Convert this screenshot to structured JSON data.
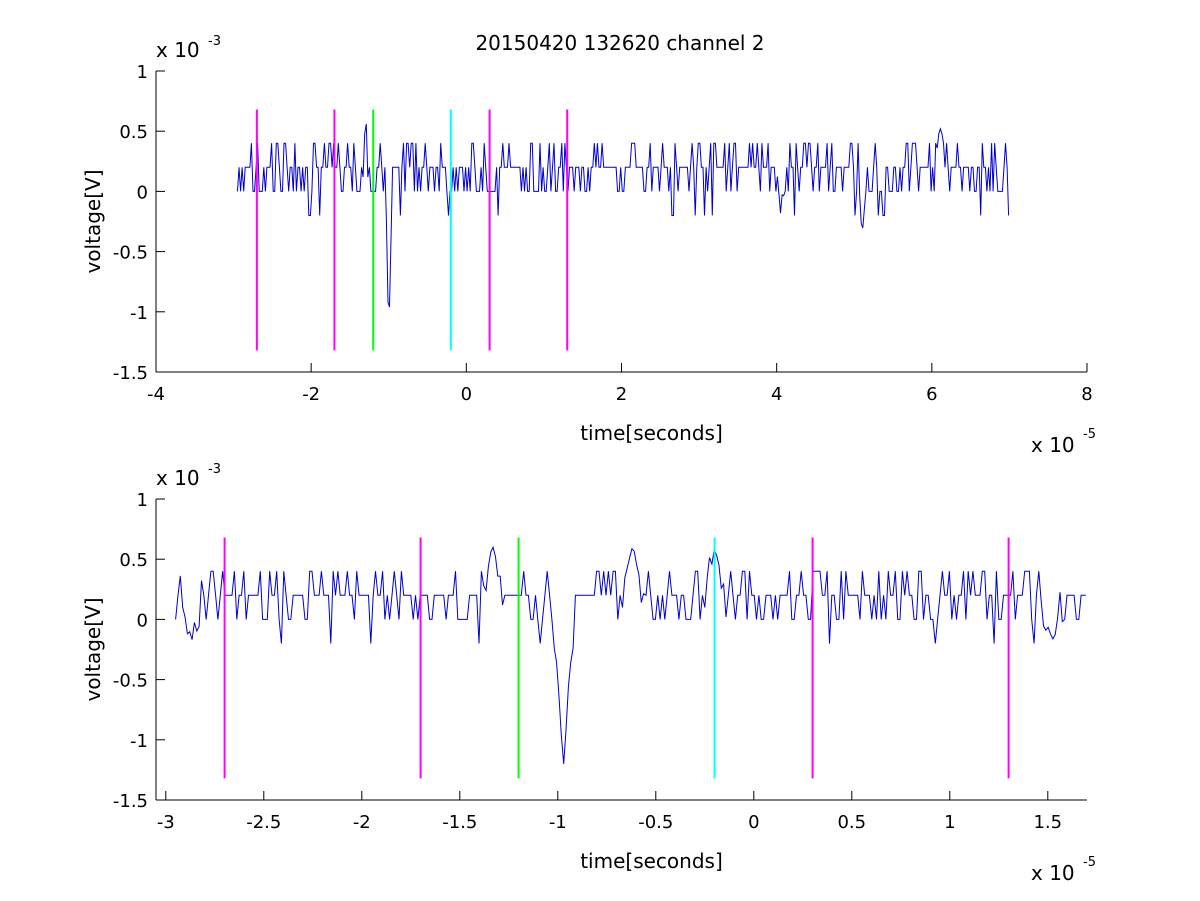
{
  "figure": {
    "title": "20150420 132620 channel 2"
  },
  "colors": {
    "signal": "#0000d0",
    "magenta": "#ff00ff",
    "green": "#00ff00",
    "cyan": "#00ffff",
    "axes": "#000000"
  },
  "chart_data": [
    {
      "type": "line",
      "name": "overview",
      "title": "20150420 132620 channel 2",
      "xlabel": "time[seconds]",
      "ylabel": "voltage[V]",
      "x_exponent_text": "x 10",
      "x_exponent_power": "-5",
      "y_exponent_text": "x 10",
      "y_exponent_power": "-3",
      "xlim": [
        -4,
        8
      ],
      "ylim": [
        -1.5,
        1
      ],
      "x_ticks": [
        "-4",
        "-2",
        "0",
        "2",
        "4",
        "6",
        "8"
      ],
      "y_ticks": [
        "-1.5",
        "-1",
        "-0.5",
        "0",
        "0.5",
        "1"
      ],
      "x_tick_values": [
        -4,
        -2,
        0,
        2,
        4,
        6,
        8
      ],
      "y_tick_values": [
        -1.5,
        -1,
        -0.5,
        0,
        0.5,
        1
      ],
      "grid": false,
      "signal": {
        "x_start": -2.95,
        "x_end": 7.0,
        "baseline": 0.2,
        "spikes": [
          {
            "x": -1.0,
            "y": -1.2
          },
          {
            "x": -1.3,
            "y": 0.6
          },
          {
            "x": 5.1,
            "y": -0.38
          },
          {
            "x": 6.1,
            "y": 0.6
          },
          {
            "x": 4.05,
            "y": -0.18
          }
        ]
      },
      "markers": [
        {
          "x": -2.7,
          "color": "magenta",
          "y_from": -1.32,
          "y_to": 0.68
        },
        {
          "x": -1.7,
          "color": "magenta",
          "y_from": -1.32,
          "y_to": 0.68
        },
        {
          "x": -1.2,
          "color": "green",
          "y_from": -1.32,
          "y_to": 0.68
        },
        {
          "x": -0.2,
          "color": "cyan",
          "y_from": -1.32,
          "y_to": 0.68
        },
        {
          "x": 0.3,
          "color": "magenta",
          "y_from": -1.32,
          "y_to": 0.68
        },
        {
          "x": 1.3,
          "color": "magenta",
          "y_from": -1.32,
          "y_to": 0.68
        }
      ]
    },
    {
      "type": "line",
      "name": "zoom",
      "title": "",
      "xlabel": "time[seconds]",
      "ylabel": "voltage[V]",
      "x_exponent_text": "x 10",
      "x_exponent_power": "-5",
      "y_exponent_text": "x 10",
      "y_exponent_power": "-3",
      "xlim": [
        -3.05,
        1.7
      ],
      "ylim": [
        -1.5,
        1
      ],
      "x_ticks": [
        "-3",
        "-2.5",
        "-2",
        "-1.5",
        "-1",
        "-0.5",
        "0",
        "0.5",
        "1",
        "1.5"
      ],
      "y_ticks": [
        "-1.5",
        "-1",
        "-0.5",
        "0",
        "0.5",
        "1"
      ],
      "x_tick_values": [
        -3,
        -2.5,
        -2,
        -1.5,
        -1,
        -0.5,
        0,
        0.5,
        1,
        1.5
      ],
      "y_tick_values": [
        -1.5,
        -1,
        -0.5,
        0,
        0.5,
        1
      ],
      "grid": false,
      "signal": {
        "x_start": -2.95,
        "x_end": 1.7,
        "baseline": 0.2,
        "spikes": [
          {
            "x": -0.97,
            "y": -1.2
          },
          {
            "x": -1.33,
            "y": 0.6
          },
          {
            "x": -0.62,
            "y": 0.6
          },
          {
            "x": -0.2,
            "y": 0.6
          },
          {
            "x": -2.87,
            "y": -0.18
          },
          {
            "x": 1.52,
            "y": -0.18
          }
        ]
      },
      "markers": [
        {
          "x": -2.7,
          "color": "magenta",
          "y_from": -1.32,
          "y_to": 0.68
        },
        {
          "x": -1.7,
          "color": "magenta",
          "y_from": -1.32,
          "y_to": 0.68
        },
        {
          "x": -1.2,
          "color": "green",
          "y_from": -1.32,
          "y_to": 0.68
        },
        {
          "x": -0.2,
          "color": "cyan",
          "y_from": -1.32,
          "y_to": 0.68
        },
        {
          "x": 0.3,
          "color": "magenta",
          "y_from": -1.32,
          "y_to": 0.68
        },
        {
          "x": 1.3,
          "color": "magenta",
          "y_from": -1.32,
          "y_to": 0.68
        }
      ]
    }
  ]
}
